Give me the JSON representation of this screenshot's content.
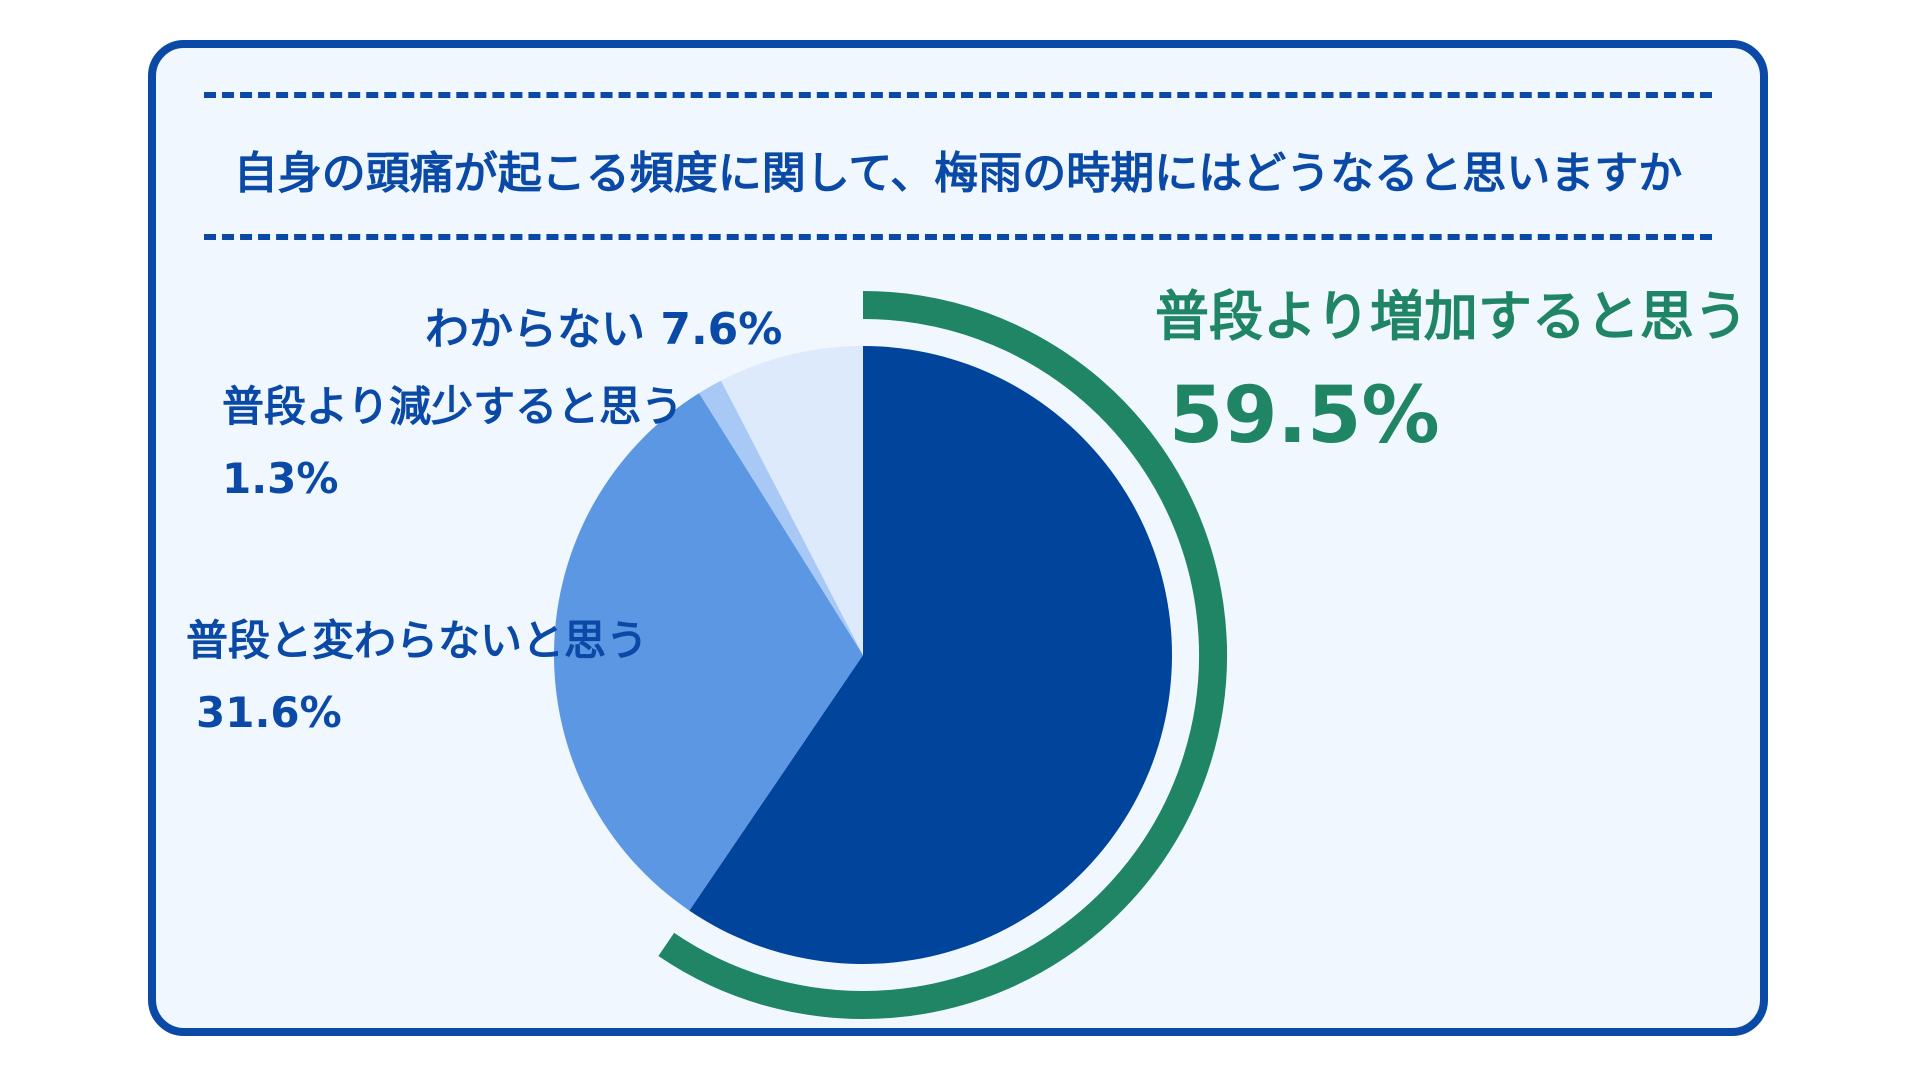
{
  "chart_data": {
    "type": "pie",
    "title": "自身の頭痛が起こる頻度に関して、梅雨の時期にはどうなると思いますか",
    "slices": [
      {
        "label": "普段より増加すると思う",
        "value": 59.5,
        "value_label": "59.5%",
        "color": "#00449c"
      },
      {
        "label": "普段と変わらないと思う",
        "value": 31.6,
        "value_label": "31.6%",
        "color": "#5b97e3"
      },
      {
        "label": "普段より減少すると思う",
        "value": 1.3,
        "value_label": "1.3%",
        "color": "#a8c8f5"
      },
      {
        "label": "わからない",
        "value": 7.6,
        "value_label": "7.6%",
        "color": "#dceafc"
      }
    ],
    "highlight": {
      "slice": "普段より増加すると思う",
      "color": "#1f8564"
    },
    "start": "12 o'clock",
    "direction": "clockwise"
  }
}
